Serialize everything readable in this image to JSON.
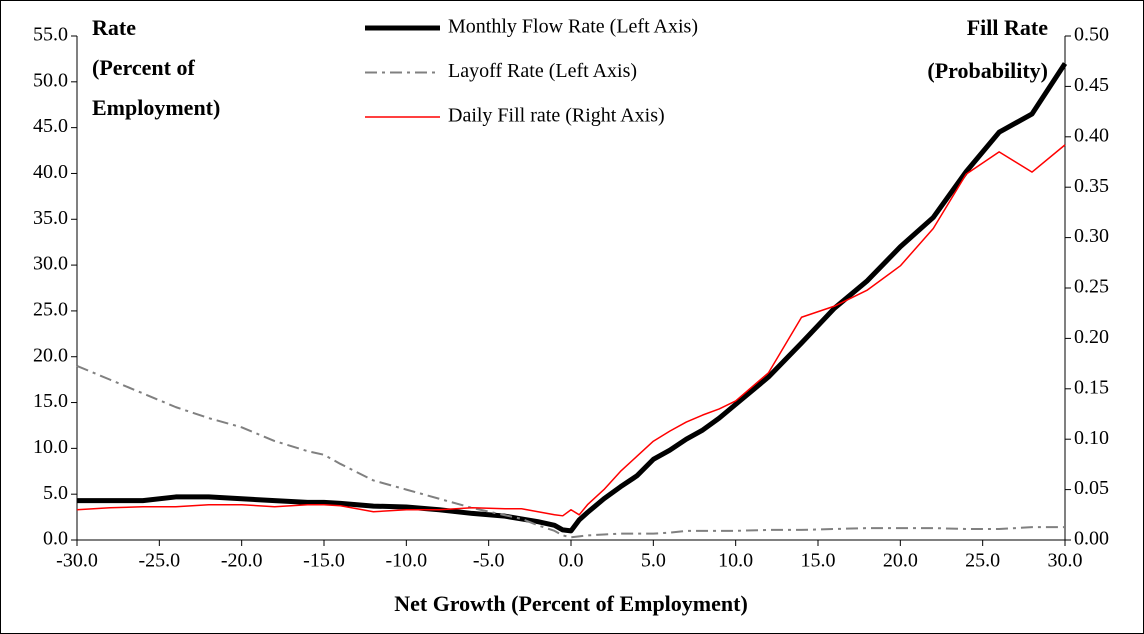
{
  "chart_data": {
    "type": "line",
    "ylabel": [
      "Rate",
      "(Percent of",
      "Employment)"
    ],
    "y2label": [
      "Fill Rate",
      "(Probability)"
    ],
    "xlabel": "Net Growth (Percent of Employment)",
    "x": [
      -30,
      -28,
      -26,
      -24,
      -22,
      -20,
      -18,
      -16,
      -15,
      -14,
      -12,
      -10,
      -8,
      -6,
      -4,
      -3,
      -2,
      -1,
      -0.5,
      0,
      0.5,
      1,
      2,
      3,
      4,
      5,
      6,
      7,
      8,
      9,
      10,
      12,
      14,
      16,
      18,
      20,
      22,
      24,
      26,
      28,
      30
    ],
    "series": [
      {
        "name": "Monthly Flow Rate (Left Axis)",
        "color": "#000000",
        "linestyle": "solid",
        "axis": "y",
        "values": [
          4.3,
          4.3,
          4.3,
          4.7,
          4.7,
          4.5,
          4.3,
          4.1,
          4.1,
          4.0,
          3.7,
          3.6,
          3.3,
          2.9,
          2.6,
          2.3,
          2.0,
          1.6,
          1.1,
          1.0,
          2.2,
          3.0,
          4.5,
          5.8,
          7.0,
          8.8,
          9.8,
          11.0,
          12.0,
          13.3,
          14.8,
          17.8,
          21.5,
          25.3,
          28.3,
          32.0,
          35.2,
          40.2,
          44.5,
          46.5,
          52.0
        ]
      },
      {
        "name": "Layoff Rate (Left Axis)",
        "color": "#808080",
        "linestyle": "dashdot",
        "axis": "y",
        "values": [
          19.0,
          17.5,
          16.0,
          14.5,
          13.3,
          12.3,
          10.8,
          9.7,
          9.3,
          8.3,
          6.5,
          5.5,
          4.5,
          3.5,
          2.7,
          2.3,
          1.6,
          1.0,
          0.5,
          0.3,
          0.4,
          0.5,
          0.6,
          0.7,
          0.7,
          0.7,
          0.8,
          1.0,
          1.0,
          1.0,
          1.0,
          1.1,
          1.1,
          1.2,
          1.3,
          1.3,
          1.3,
          1.2,
          1.2,
          1.4,
          1.4
        ]
      },
      {
        "name": "Daily Fill rate (Right Axis)",
        "color": "#ff0000",
        "linestyle": "solid",
        "axis": "y2",
        "values": [
          0.03,
          0.032,
          0.033,
          0.033,
          0.035,
          0.035,
          0.033,
          0.035,
          0.035,
          0.034,
          0.028,
          0.03,
          0.03,
          0.032,
          0.031,
          0.031,
          0.028,
          0.025,
          0.024,
          0.03,
          0.025,
          0.035,
          0.05,
          0.068,
          0.083,
          0.098,
          0.108,
          0.117,
          0.124,
          0.13,
          0.138,
          0.166,
          0.221,
          0.232,
          0.248,
          0.272,
          0.309,
          0.363,
          0.385,
          0.365,
          0.392
        ]
      }
    ],
    "xlim": [
      -30,
      30
    ],
    "xticks": [
      {
        "value": -30,
        "label": "-30.0"
      },
      {
        "value": -25,
        "label": "-25.0"
      },
      {
        "value": -20,
        "label": "-20.0"
      },
      {
        "value": -15,
        "label": "-15.0"
      },
      {
        "value": -10,
        "label": "-10.0"
      },
      {
        "value": -5,
        "label": "-5.0"
      },
      {
        "value": 0,
        "label": "0.0"
      },
      {
        "value": 5,
        "label": "5.0"
      },
      {
        "value": 10,
        "label": "10.0"
      },
      {
        "value": 15,
        "label": "15.0"
      },
      {
        "value": 20,
        "label": "20.0"
      },
      {
        "value": 25,
        "label": "25.0"
      },
      {
        "value": 30,
        "label": "30.0"
      }
    ],
    "ylim": [
      0,
      55
    ],
    "yticks": [
      {
        "value": 0,
        "label": "0.0"
      },
      {
        "value": 5,
        "label": "5.0"
      },
      {
        "value": 10,
        "label": "10.0"
      },
      {
        "value": 15,
        "label": "15.0"
      },
      {
        "value": 20,
        "label": "20.0"
      },
      {
        "value": 25,
        "label": "25.0"
      },
      {
        "value": 30,
        "label": "30.0"
      },
      {
        "value": 35,
        "label": "35.0"
      },
      {
        "value": 40,
        "label": "40.0"
      },
      {
        "value": 45,
        "label": "45.0"
      },
      {
        "value": 50,
        "label": "50.0"
      },
      {
        "value": 55,
        "label": "55.0"
      }
    ],
    "y2lim": [
      0,
      0.5
    ],
    "y2ticks": [
      {
        "value": 0,
        "label": "0.00"
      },
      {
        "value": 0.05,
        "label": "0.05"
      },
      {
        "value": 0.1,
        "label": "0.10"
      },
      {
        "value": 0.15,
        "label": "0.15"
      },
      {
        "value": 0.2,
        "label": "0.20"
      },
      {
        "value": 0.25,
        "label": "0.25"
      },
      {
        "value": 0.3,
        "label": "0.30"
      },
      {
        "value": 0.35,
        "label": "0.35"
      },
      {
        "value": 0.4,
        "label": "0.40"
      },
      {
        "value": 0.45,
        "label": "0.45"
      },
      {
        "value": 0.5,
        "label": "0.50"
      }
    ],
    "legend": "top"
  }
}
